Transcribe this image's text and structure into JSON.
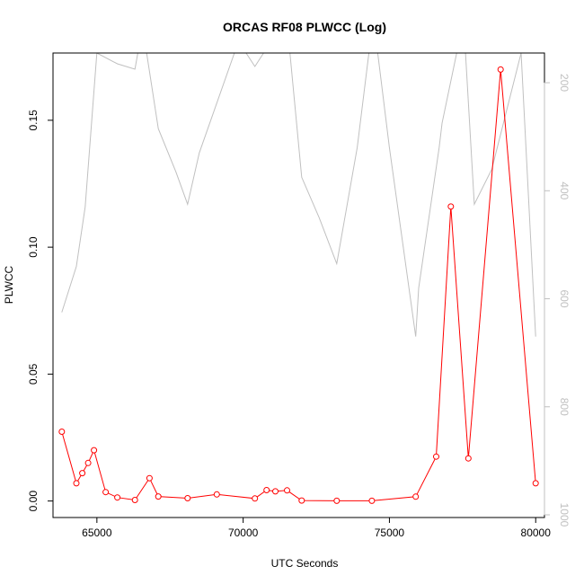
{
  "chart_data": {
    "type": "line",
    "title": "ORCAS RF08 PLWCC (Log)",
    "xlabel": "UTC Seconds",
    "ylabel": "PLWCC",
    "xlim": [
      63500,
      80300
    ],
    "ylim": [
      -0.0065,
      0.1765
    ],
    "y2lim": [
      1005,
      145
    ],
    "x_ticks": [
      65000,
      70000,
      75000,
      80000
    ],
    "x_tick_labels": [
      "65000",
      "70000",
      "75000",
      "80000"
    ],
    "y_ticks": [
      0.0,
      0.05,
      0.1,
      0.15
    ],
    "y_tick_labels": [
      "0.00",
      "0.05",
      "0.10",
      "0.15"
    ],
    "y2_ticks": [
      200,
      400,
      600,
      800,
      1000
    ],
    "y2_tick_labels": [
      "200",
      "400",
      "600",
      "800",
      "1000"
    ],
    "grid": false,
    "series": [
      {
        "color": "#ff0000",
        "axis": "left",
        "marker": "open-circle",
        "x": [
          63800,
          64300,
          64500,
          64700,
          64900,
          65300,
          65700,
          66300,
          66800,
          67100,
          68100,
          69100,
          70400,
          70800,
          71100,
          71500,
          72000,
          73200,
          74400,
          75900,
          76600,
          77100,
          77700,
          78800,
          80000
        ],
        "y": [
          0.0273,
          0.007,
          0.011,
          0.015,
          0.02,
          0.0035,
          0.0014,
          0.0004,
          0.009,
          0.0018,
          0.0011,
          0.0026,
          0.001,
          0.0043,
          0.0038,
          0.0042,
          0.0002,
          0.0001,
          0.0001,
          0.0017,
          0.0175,
          0.116,
          0.0168,
          0.17,
          0.007
        ]
      },
      {
        "color": "#c0c0c0",
        "axis": "right",
        "x": [
          63800,
          64300,
          64600,
          65000,
          65700,
          66300,
          66400,
          66600,
          66700,
          67100,
          67700,
          68100,
          68500,
          69700,
          70100,
          70400,
          70700,
          71600,
          72000,
          72600,
          73200,
          73900,
          74300,
          74600,
          75000,
          75900,
          76000,
          76700,
          76800,
          77300,
          77600,
          77900,
          78500,
          79500,
          80000
        ],
        "y": [
          625,
          540,
          430,
          145,
          165,
          175,
          145,
          145,
          145,
          285,
          365,
          425,
          330,
          145,
          145,
          170,
          145,
          145,
          375,
          450,
          535,
          320,
          145,
          145,
          320,
          670,
          580,
          320,
          275,
          145,
          145,
          425,
          360,
          145,
          670
        ]
      }
    ]
  }
}
